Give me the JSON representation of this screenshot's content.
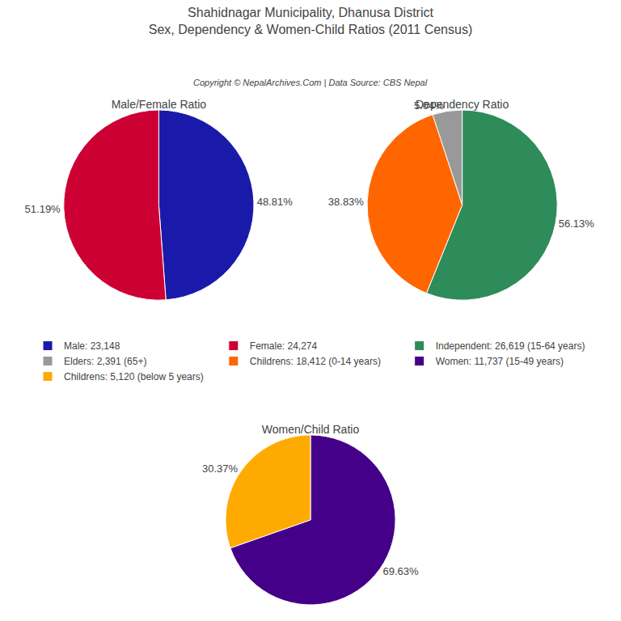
{
  "title": "Shahidnagar Municipality, Dhanusa District",
  "subtitle": "Sex, Dependency & Women-Child Ratios (2011 Census)",
  "annotations": [
    "Copyright © NepalArchives.Com | Data Source: CBS Nepal"
  ],
  "legend": "center",
  "chart_data": [
    {
      "type": "pie",
      "title": "Male/Female Ratio",
      "categories": [
        "Male: 23,148",
        "Female: 24,274"
      ],
      "values": [
        48.81,
        51.19
      ],
      "value_labels": [
        "48.81%",
        "51.19%"
      ],
      "colors": [
        "#1a1aaa",
        "#cc0033"
      ],
      "data_labels": true
    },
    {
      "type": "pie",
      "title": "Dependency Ratio",
      "categories": [
        "Independent: 26,619 (15-64 years)",
        "Elders: 2,391 (65+)",
        "Childrens: 18,412 (0-14 years)"
      ],
      "values": [
        56.13,
        5.04,
        38.83
      ],
      "value_labels": [
        "56.13%",
        "5.04%",
        "38.83%"
      ],
      "colors": [
        "#2e8b5a",
        "#999999",
        "#ff6600"
      ],
      "data_labels": true
    },
    {
      "type": "pie",
      "title": "Women/Child Ratio",
      "categories": [
        "Women: 11,737 (15-49 years)",
        "Childrens: 5,120 (below 5 years)"
      ],
      "values": [
        69.63,
        30.37
      ],
      "value_labels": [
        "69.63%",
        "30.37%"
      ],
      "colors": [
        "#440088",
        "#ffaa00"
      ],
      "data_labels": true
    }
  ]
}
